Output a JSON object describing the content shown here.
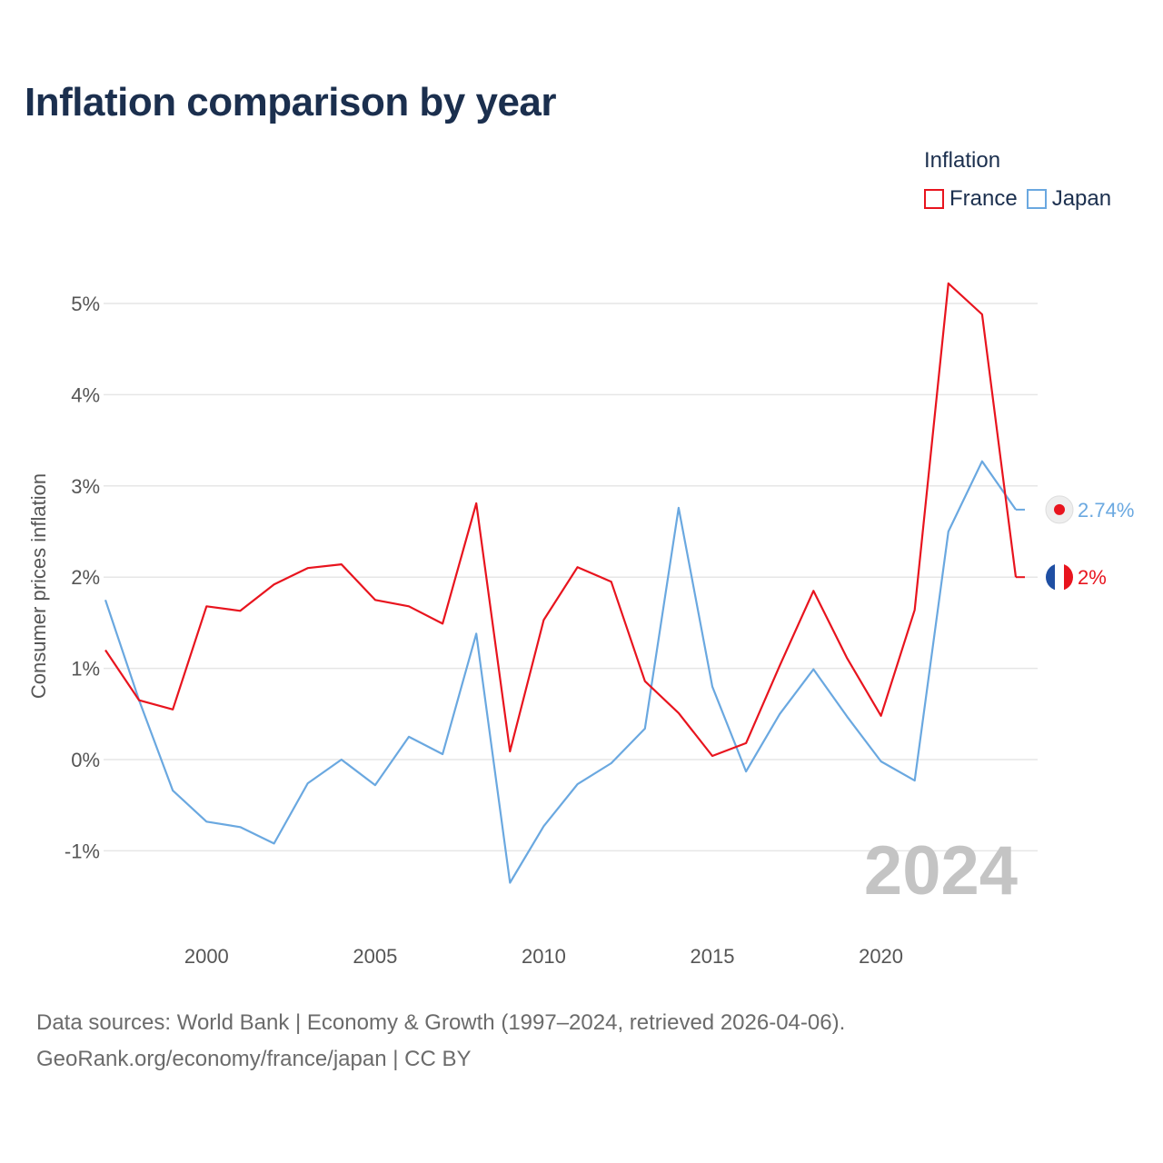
{
  "title": "Inflation comparison by year",
  "legend": {
    "title": "Inflation",
    "items": [
      {
        "label": "France",
        "color": "#e8141e"
      },
      {
        "label": "Japan",
        "color": "#6aa8e0"
      }
    ]
  },
  "footer": {
    "line1": "Data sources: World Bank | Economy & Growth (1997–2024, retrieved 2026-04-06).",
    "line2": "GeoRank.org/economy/france/japan | CC BY"
  },
  "chart_data": {
    "type": "line",
    "title": "Inflation comparison by year",
    "xlabel": "",
    "ylabel": "Consumer prices inflation",
    "xlim": [
      1997,
      2024
    ],
    "ylim": [
      -1.8,
      5.3
    ],
    "x_ticks": [
      2000,
      2005,
      2010,
      2015,
      2020
    ],
    "y_ticks": [
      -1,
      0,
      1,
      2,
      3,
      4,
      5
    ],
    "y_tick_labels": [
      "-1%",
      "0%",
      "1%",
      "2%",
      "3%",
      "4%",
      "5%"
    ],
    "grid": true,
    "legend_position": "top-right",
    "highlight_year": "2024",
    "x": [
      1997,
      1998,
      1999,
      2000,
      2001,
      2002,
      2003,
      2004,
      2005,
      2006,
      2007,
      2008,
      2009,
      2010,
      2011,
      2012,
      2013,
      2014,
      2015,
      2016,
      2017,
      2018,
      2019,
      2020,
      2021,
      2022,
      2023,
      2024
    ],
    "series": [
      {
        "name": "France",
        "color": "#e8141e",
        "end_label": "2%",
        "values": [
          1.2,
          0.65,
          0.55,
          1.68,
          1.63,
          1.92,
          2.1,
          2.14,
          1.75,
          1.68,
          1.49,
          2.81,
          0.09,
          1.53,
          2.11,
          1.95,
          0.86,
          0.51,
          0.04,
          0.18,
          1.03,
          1.85,
          1.11,
          0.48,
          1.64,
          5.22,
          4.88,
          2.0
        ]
      },
      {
        "name": "Japan",
        "color": "#6aa8e0",
        "end_label": "2.74%",
        "values": [
          1.75,
          0.65,
          -0.34,
          -0.68,
          -0.74,
          -0.92,
          -0.26,
          0.0,
          -0.28,
          0.25,
          0.06,
          1.38,
          -1.35,
          -0.73,
          -0.27,
          -0.04,
          0.34,
          2.76,
          0.8,
          -0.13,
          0.5,
          0.99,
          0.47,
          -0.02,
          -0.23,
          2.5,
          3.27,
          2.74
        ]
      }
    ]
  }
}
